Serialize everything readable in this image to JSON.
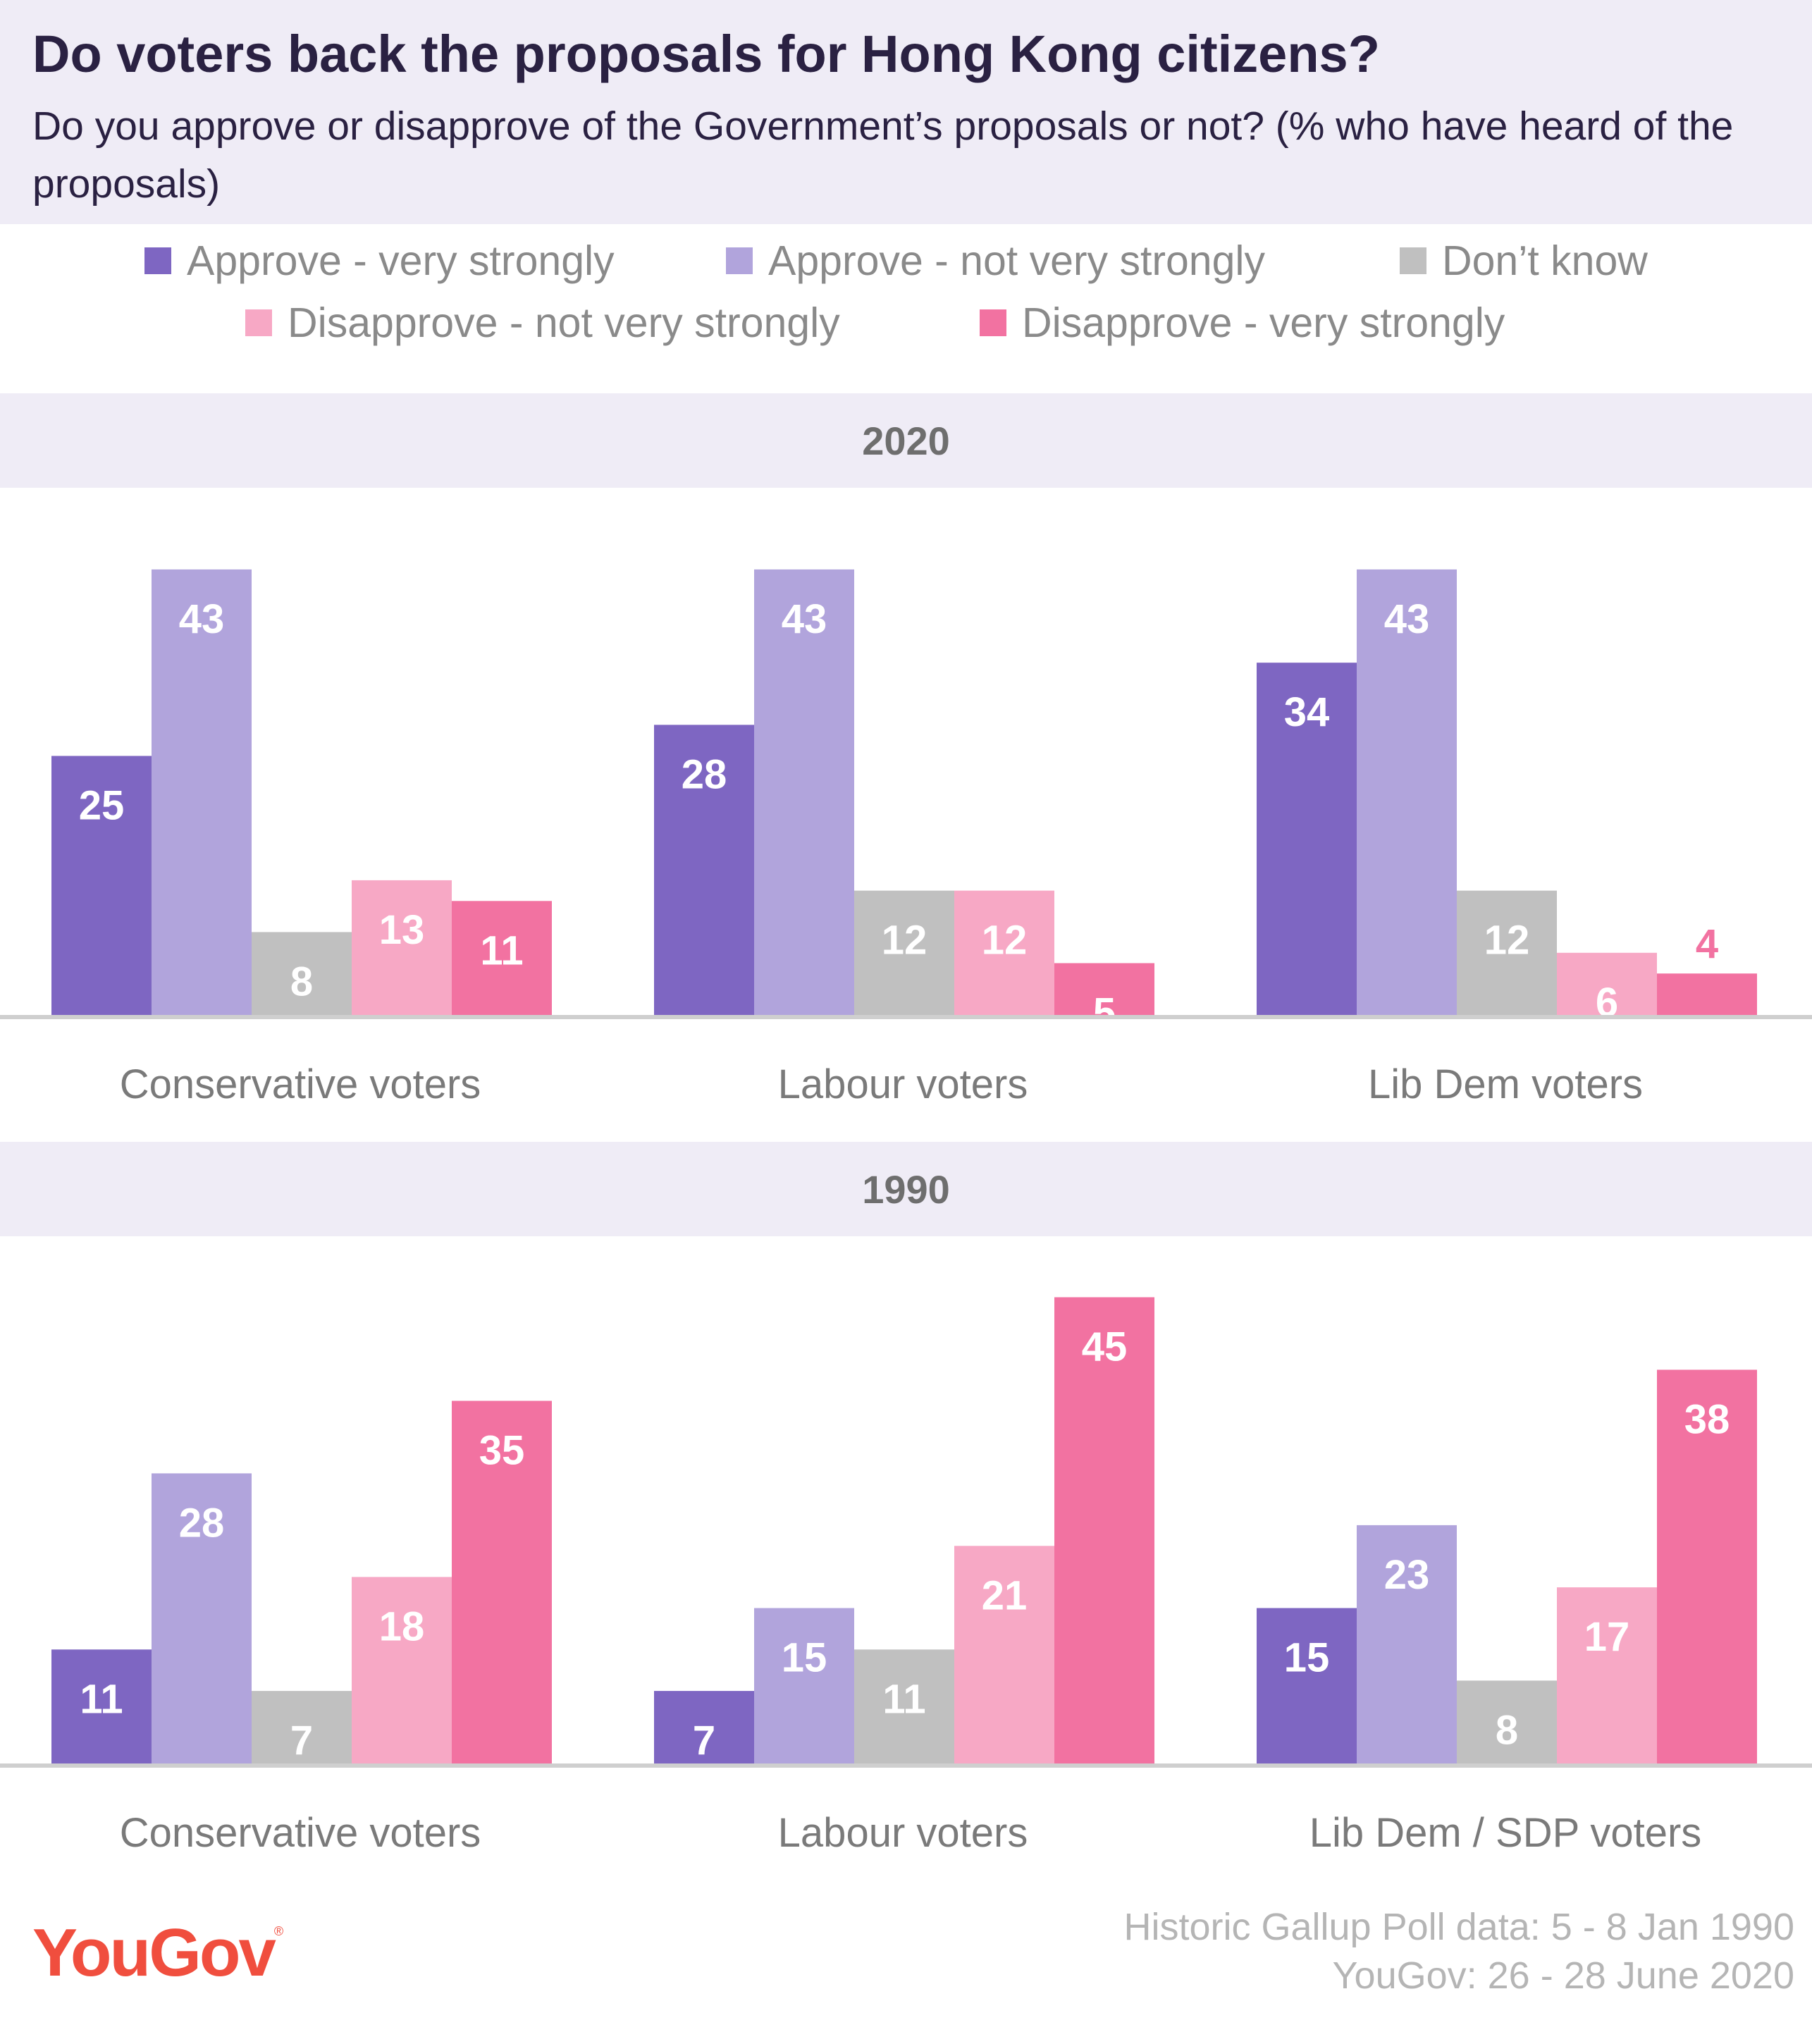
{
  "header": {
    "title": "Do voters back the proposals for Hong Kong citizens?",
    "subtitle": "Do you approve or disapprove of the Government’s proposals or not? (% who have heard of the proposals)"
  },
  "legend": [
    {
      "label": "Approve - very strongly",
      "color": "#7e66c2"
    },
    {
      "label": "Approve - not very strongly",
      "color": "#b1a4dc"
    },
    {
      "label": "Don’t know",
      "color": "#c0c0c0"
    },
    {
      "label": "Disapprove - not very strongly",
      "color": "#f7a8c5"
    },
    {
      "label": "Disapprove - very strongly",
      "color": "#f272a1"
    }
  ],
  "colors": {
    "approve_very": "#7e66c2",
    "approve_not_very": "#b1a4dc",
    "dont_know": "#c0c0c0",
    "disapprove_not_very": "#f7a8c5",
    "disapprove_very": "#f272a1",
    "title": "#2a2142",
    "band": "#efecf6",
    "brand": "#f04e3e"
  },
  "chart_data": [
    {
      "type": "bar",
      "title": "2020",
      "categories": [
        "Conservative voters",
        "Labour voters",
        "Lib Dem voters"
      ],
      "series": [
        {
          "name": "Approve - very strongly",
          "values": [
            25,
            28,
            34
          ]
        },
        {
          "name": "Approve - not very strongly",
          "values": [
            43,
            43,
            43
          ]
        },
        {
          "name": "Don’t know",
          "values": [
            8,
            12,
            12
          ]
        },
        {
          "name": "Disapprove - not very strongly",
          "values": [
            13,
            12,
            6
          ]
        },
        {
          "name": "Disapprove - very strongly",
          "values": [
            11,
            5,
            4
          ]
        }
      ],
      "ylim": [
        0,
        45
      ],
      "grid": false,
      "legend_position": "top"
    },
    {
      "type": "bar",
      "title": "1990",
      "categories": [
        "Conservative voters",
        "Labour voters",
        "Lib Dem / SDP voters"
      ],
      "series": [
        {
          "name": "Approve - very strongly",
          "values": [
            11,
            7,
            15
          ]
        },
        {
          "name": "Approve - not very strongly",
          "values": [
            28,
            15,
            23
          ]
        },
        {
          "name": "Don’t know",
          "values": [
            7,
            11,
            8
          ]
        },
        {
          "name": "Disapprove - not very strongly",
          "values": [
            18,
            21,
            17
          ]
        },
        {
          "name": "Disapprove - very strongly",
          "values": [
            35,
            45,
            38
          ]
        }
      ],
      "ylim": [
        0,
        45
      ],
      "grid": false,
      "legend_position": "top"
    }
  ],
  "footer": {
    "logo": "YouGov",
    "logo_mark": "®",
    "source_line1": "Historic Gallup Poll data: 5 - 8 Jan 1990",
    "source_line2": "YouGov: 26 - 28 June 2020"
  }
}
